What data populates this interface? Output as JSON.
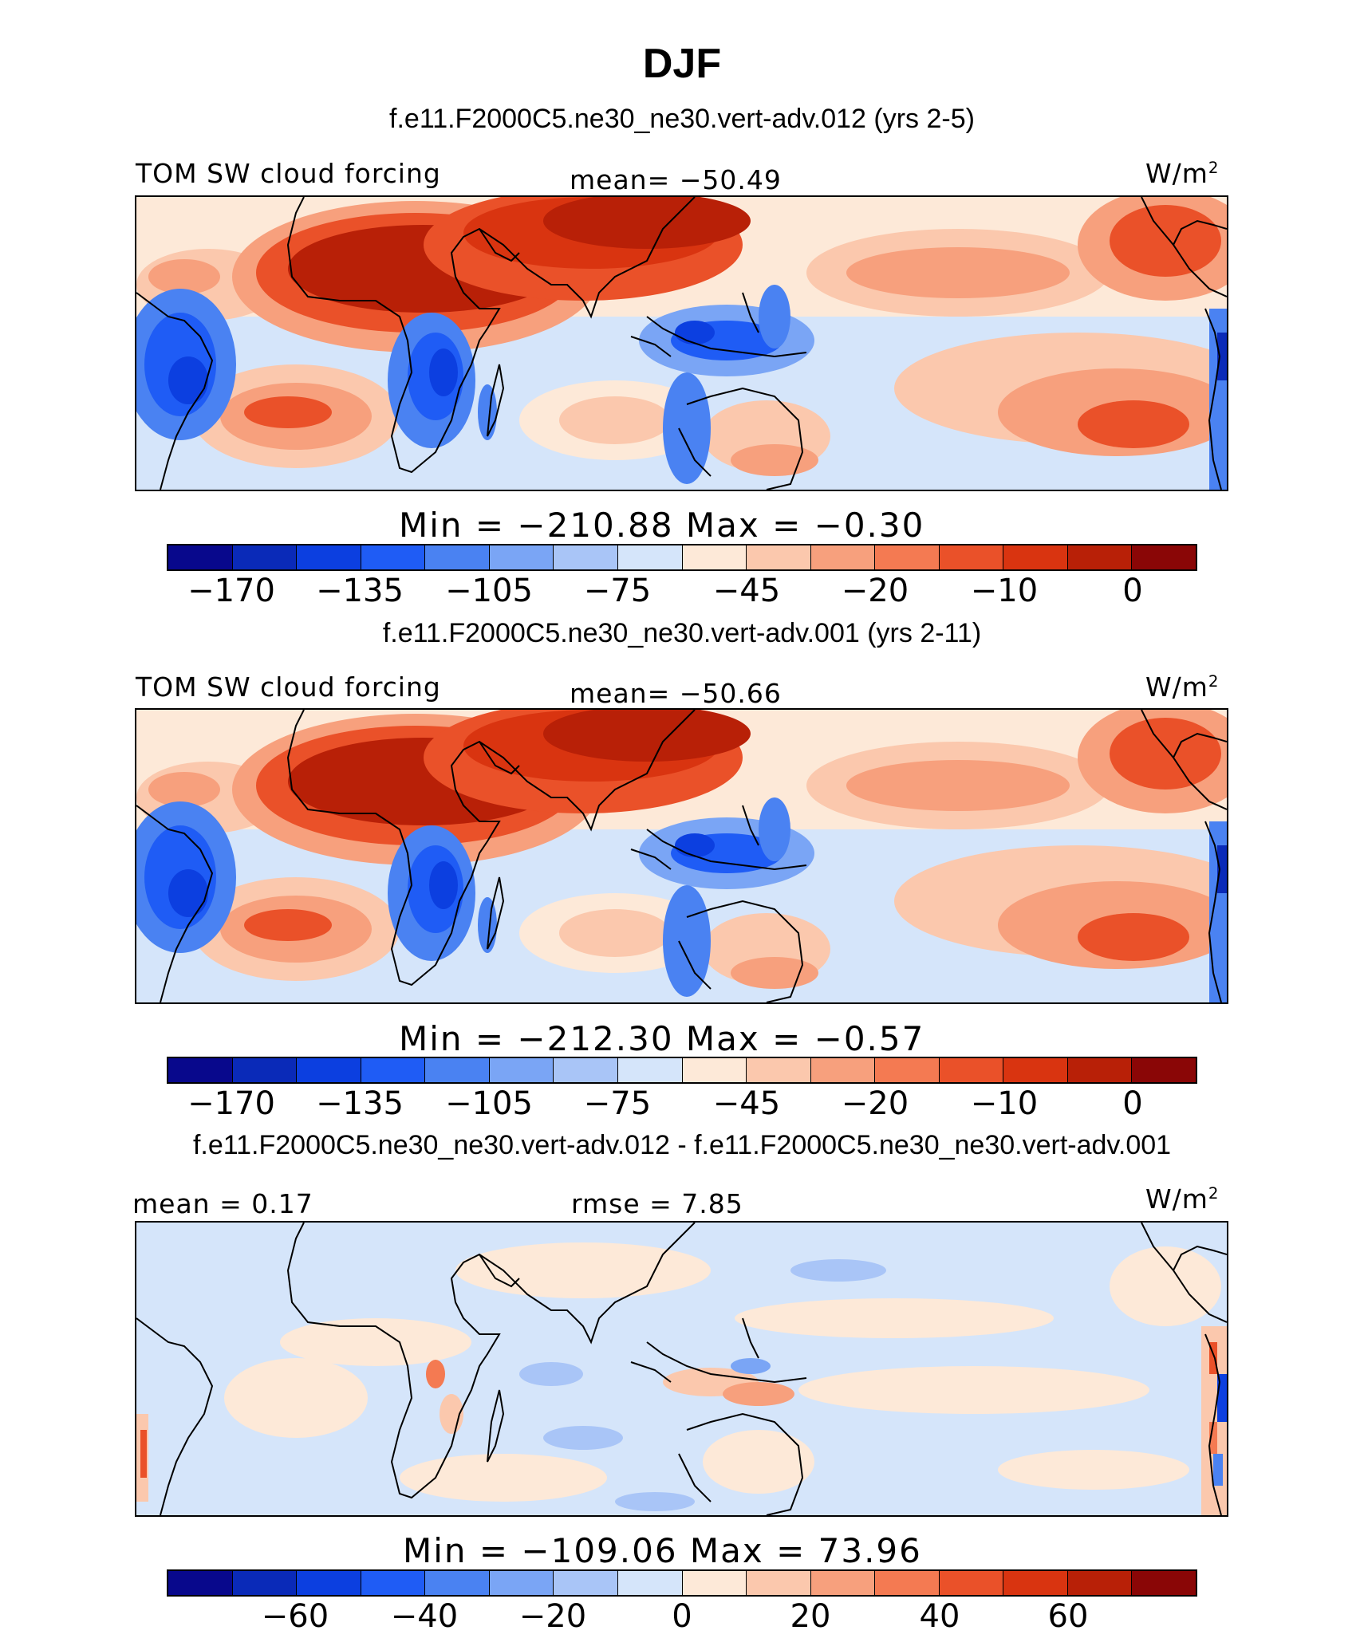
{
  "figure": {
    "title": "DJF"
  },
  "panels": [
    {
      "id": "p1",
      "case": "f.e11.F2000C5.ne30_ne30.vert-adv.012 (yrs 2-5)",
      "left_label": "TOM SW cloud forcing",
      "center_label": "mean= −50.49",
      "units": "W/m",
      "units_sup": "2",
      "minmax": "Min = −210.88  Max =  −0.30",
      "colorbar_labels": [
        "−170",
        "−135",
        "−105",
        "−75",
        "−45",
        "−20",
        "−10",
        "0"
      ]
    },
    {
      "id": "p2",
      "case": "f.e11.F2000C5.ne30_ne30.vert-adv.001 (yrs 2-11)",
      "left_label": "TOM SW cloud forcing",
      "center_label": "mean= −50.66",
      "units": "W/m",
      "units_sup": "2",
      "minmax": "Min = −212.30  Max =  −0.57",
      "colorbar_labels": [
        "−170",
        "−135",
        "−105",
        "−75",
        "−45",
        "−20",
        "−10",
        "0"
      ]
    },
    {
      "id": "p3",
      "case": "f.e11.F2000C5.ne30_ne30.vert-adv.012 - f.e11.F2000C5.ne30_ne30.vert-adv.001",
      "left_label": "mean =   0.17",
      "center_label": "rmse =   7.85",
      "units": "W/m",
      "units_sup": "2",
      "minmax": "Min = −109.06  Max =  73.96",
      "colorbar_labels": [
        "−60",
        "−40",
        "−20",
        "0",
        "20",
        "40",
        "60"
      ]
    }
  ],
  "colorbar_palette": [
    "#08088c",
    "#0a2ab8",
    "#0c3fe0",
    "#1f5cf5",
    "#4a82f2",
    "#7aa5f5",
    "#a9c5f7",
    "#d5e5fa",
    "#fde9d8",
    "#fbc8ad",
    "#f7a07d",
    "#f47a52",
    "#ea5129",
    "#d93410",
    "#b82007",
    "#8a0606"
  ]
}
